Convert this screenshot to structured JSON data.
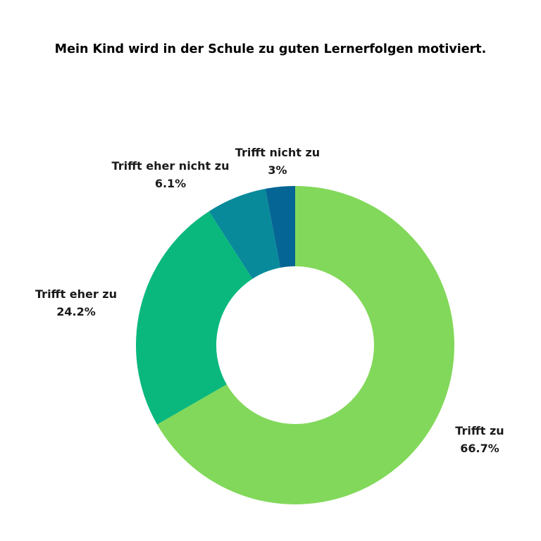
{
  "chart_data": {
    "type": "pie",
    "variant": "donut",
    "title": "Mein Kind wird in der Schule zu guten Lernerfolgen motiviert.",
    "slices": [
      {
        "label": "Trifft zu",
        "value": 66.7,
        "display": "66.7%",
        "color": "#82d85a"
      },
      {
        "label": "Trifft eher zu",
        "value": 24.2,
        "display": "24.2%",
        "color": "#0ab87d"
      },
      {
        "label": "Trifft eher nicht zu",
        "value": 6.1,
        "display": "6.1%",
        "color": "#088a9a"
      },
      {
        "label": "Trifft nicht zu",
        "value": 3.0,
        "display": "3%",
        "color": "#056594"
      }
    ],
    "legend": "none"
  }
}
